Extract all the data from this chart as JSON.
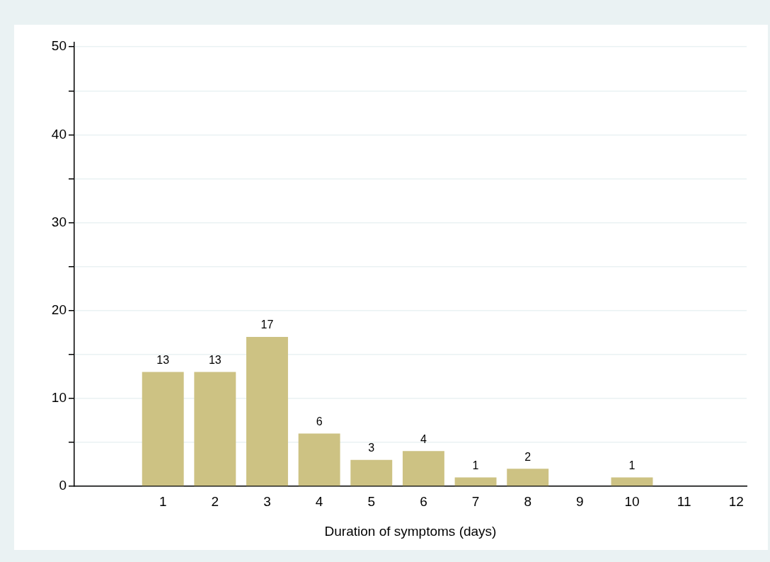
{
  "chart_data": {
    "type": "bar",
    "xlabel": "Duration of symptoms (days)",
    "x": [
      1,
      2,
      3,
      4,
      5,
      6,
      7,
      8,
      10
    ],
    "values": [
      13,
      13,
      17,
      6,
      3,
      4,
      1,
      2,
      1
    ],
    "color": "#cdc283",
    "data_labels": true,
    "xlim": [
      -0.7,
      12.2
    ],
    "xticks": [
      1,
      2,
      3,
      4,
      5,
      6,
      7,
      8,
      9,
      10,
      11,
      12
    ],
    "ylim": [
      0,
      50.5
    ],
    "yticks": [
      0,
      {
        "value": 5,
        "label": null
      },
      10,
      {
        "value": 15,
        "label": null
      },
      20,
      {
        "value": 25,
        "label": null
      },
      30,
      {
        "value": 35,
        "label": null
      },
      40,
      {
        "value": 45,
        "label": null
      },
      50
    ],
    "grid": "y",
    "legend": false
  }
}
